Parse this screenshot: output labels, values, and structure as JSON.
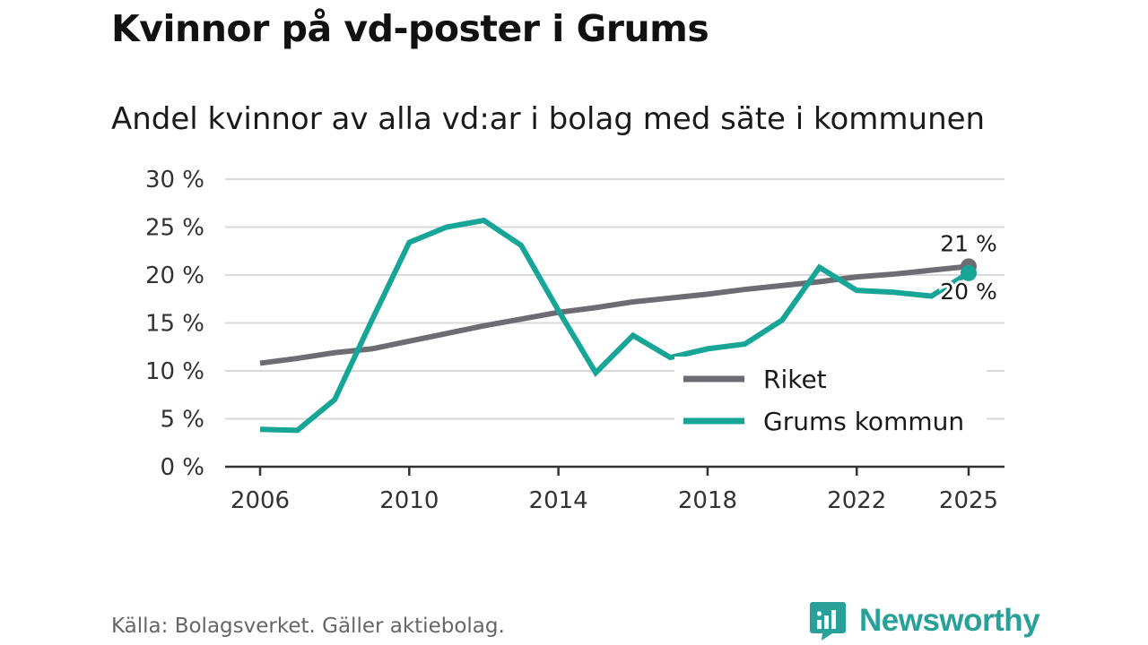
{
  "title": "Kvinnor på vd-poster i Grums",
  "subtitle": "Andel kvinnor av alla vd:ar i bolag med säte i kommunen",
  "source": "Källa: Bolagsverket. Gäller aktiebolag.",
  "brand": {
    "name": "Newsworthy",
    "icon": "newsworthy-logo-icon"
  },
  "colors": {
    "riket": "#6e6c72",
    "grums": "#16a597",
    "grid": "#d9d9d9",
    "axis": "#333333",
    "brand": "#2aa198"
  },
  "chart_data": {
    "type": "line",
    "title": "Kvinnor på vd-poster i Grums",
    "subtitle": "Andel kvinnor av alla vd:ar i bolag med säte i kommunen",
    "xlabel": "",
    "ylabel": "",
    "xlim": [
      2006,
      2025
    ],
    "ylim": [
      0,
      30
    ],
    "grid": true,
    "legend_position": "bottom-right",
    "y_ticks": [
      {
        "value": 0,
        "label": "0 %"
      },
      {
        "value": 5,
        "label": "5 %"
      },
      {
        "value": 10,
        "label": "10 %"
      },
      {
        "value": 15,
        "label": "15 %"
      },
      {
        "value": 20,
        "label": "20 %"
      },
      {
        "value": 25,
        "label": "25 %"
      },
      {
        "value": 30,
        "label": "30 %"
      }
    ],
    "x_ticks": [
      {
        "value": 2006,
        "label": "2006"
      },
      {
        "value": 2010,
        "label": "2010"
      },
      {
        "value": 2014,
        "label": "2014"
      },
      {
        "value": 2018,
        "label": "2018"
      },
      {
        "value": 2022,
        "label": "2022"
      },
      {
        "value": 2025,
        "label": "2025"
      }
    ],
    "x": [
      2006,
      2007,
      2008,
      2009,
      2010,
      2011,
      2012,
      2013,
      2014,
      2015,
      2016,
      2017,
      2018,
      2019,
      2020,
      2021,
      2022,
      2023,
      2024,
      2025
    ],
    "series": [
      {
        "key": "riket",
        "name": "Riket",
        "values": [
          10.8,
          11.3,
          11.9,
          12.3,
          13.1,
          13.9,
          14.7,
          15.4,
          16.1,
          16.6,
          17.2,
          17.6,
          18.0,
          18.5,
          18.9,
          19.3,
          19.8,
          20.1,
          20.5,
          20.9
        ],
        "end_label": "21 %"
      },
      {
        "key": "grums",
        "name": "Grums kommun",
        "values": [
          3.9,
          3.8,
          7.0,
          15.3,
          23.4,
          25.0,
          25.7,
          23.1,
          16.3,
          9.8,
          13.7,
          11.4,
          12.3,
          12.8,
          15.3,
          20.8,
          18.4,
          18.2,
          17.8,
          20.2
        ],
        "end_label": "20 %"
      }
    ]
  }
}
